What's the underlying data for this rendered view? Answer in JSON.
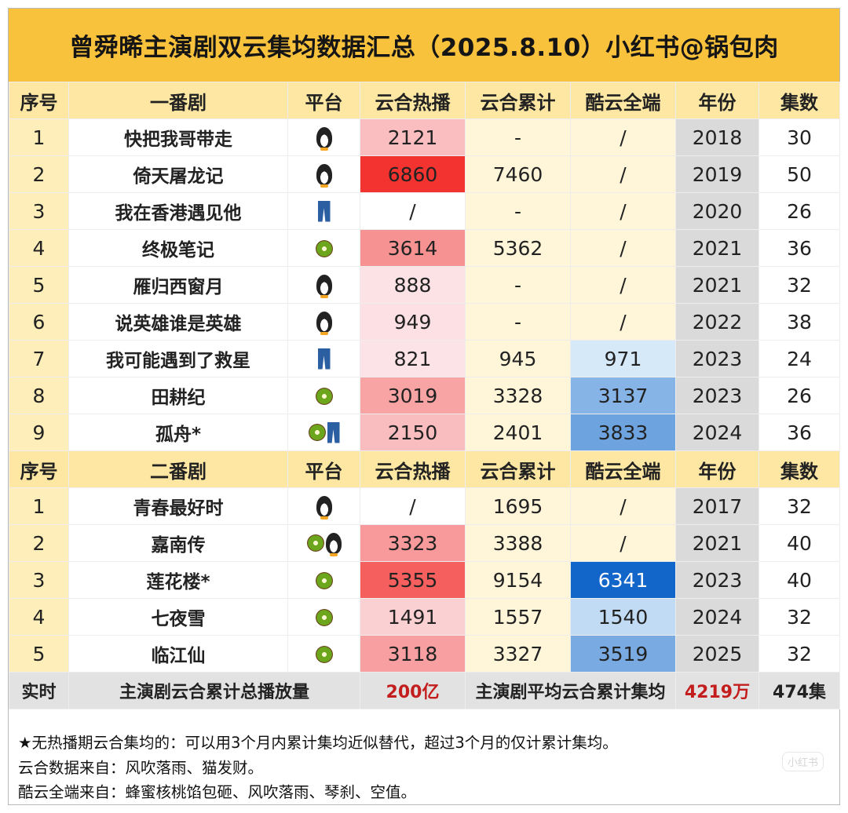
{
  "title": "曾舜晞主演剧双云集均数据汇总（2025.8.10）小红书@锅包肉",
  "headers1": [
    "序号",
    "一番剧",
    "平台",
    "云合热播",
    "云合累计",
    "酷云全端",
    "年份",
    "集数"
  ],
  "headers2": [
    "序号",
    "二番剧",
    "平台",
    "云合热播",
    "云合累计",
    "酷云全端",
    "年份",
    "集数"
  ],
  "rows1": [
    {
      "no": "1",
      "name": "快把我哥带走",
      "platforms": [
        "penguin"
      ],
      "hot": "2121",
      "total": "-",
      "kuyun": "/",
      "year": "2018",
      "eps": "30"
    },
    {
      "no": "2",
      "name": "倚天屠龙记",
      "platforms": [
        "penguin"
      ],
      "hot": "6860",
      "total": "7460",
      "kuyun": "/",
      "year": "2019",
      "eps": "50"
    },
    {
      "no": "3",
      "name": "我在香港遇见他",
      "platforms": [
        "jeans"
      ],
      "hot": "/",
      "total": "-",
      "kuyun": "/",
      "year": "2020",
      "eps": "26"
    },
    {
      "no": "4",
      "name": "终极笔记",
      "platforms": [
        "kiwi"
      ],
      "hot": "3614",
      "total": "5362",
      "kuyun": "/",
      "year": "2021",
      "eps": "36"
    },
    {
      "no": "5",
      "name": "雁归西窗月",
      "platforms": [
        "penguin"
      ],
      "hot": "888",
      "total": "-",
      "kuyun": "/",
      "year": "2021",
      "eps": "32"
    },
    {
      "no": "6",
      "name": "说英雄谁是英雄",
      "platforms": [
        "penguin"
      ],
      "hot": "949",
      "total": "-",
      "kuyun": "/",
      "year": "2022",
      "eps": "38"
    },
    {
      "no": "7",
      "name": "我可能遇到了救星",
      "platforms": [
        "jeans"
      ],
      "hot": "821",
      "total": "945",
      "kuyun": "971",
      "year": "2023",
      "eps": "24"
    },
    {
      "no": "8",
      "name": "田耕纪",
      "platforms": [
        "kiwi"
      ],
      "hot": "3019",
      "total": "3328",
      "kuyun": "3137",
      "year": "2023",
      "eps": "26"
    },
    {
      "no": "9",
      "name": "孤舟*",
      "platforms": [
        "kiwi",
        "jeans"
      ],
      "hot": "2150",
      "total": "2401",
      "kuyun": "3833",
      "year": "2024",
      "eps": "36"
    }
  ],
  "rows2": [
    {
      "no": "1",
      "name": "青春最好时",
      "platforms": [
        "penguin"
      ],
      "hot": "/",
      "total": "1695",
      "kuyun": "/",
      "year": "2017",
      "eps": "32"
    },
    {
      "no": "2",
      "name": "嘉南传",
      "platforms": [
        "kiwi",
        "penguin"
      ],
      "hot": "3323",
      "total": "3388",
      "kuyun": "/",
      "year": "2021",
      "eps": "40"
    },
    {
      "no": "3",
      "name": "莲花楼*",
      "platforms": [
        "kiwi"
      ],
      "hot": "5355",
      "total": "9154",
      "kuyun": "6341",
      "year": "2023",
      "eps": "40"
    },
    {
      "no": "4",
      "name": "七夜雪",
      "platforms": [
        "kiwi"
      ],
      "hot": "1491",
      "total": "1557",
      "kuyun": "1540",
      "year": "2024",
      "eps": "32"
    },
    {
      "no": "5",
      "name": "临江仙",
      "platforms": [
        "kiwi"
      ],
      "hot": "3118",
      "total": "3327",
      "kuyun": "3519",
      "year": "2025",
      "eps": "32"
    }
  ],
  "summary": {
    "label": "实时",
    "total_label": "主演剧云合累计总播放量",
    "total_value": "200亿",
    "avg_label": "主演剧平均云合累计集均",
    "avg_value": "4219万",
    "eps_total": "474集"
  },
  "notes": [
    "★无热播期云合集均的：可以用3个月内累计集均近似替代，超过3个月的仅计累计集均。",
    "云合数据来自：风吹落雨、猫发财。",
    "酷云全端来自：蜂蜜核桃馅包砸、风吹落雨、琴刹、空值。"
  ],
  "watermark": "小红书",
  "colors": {
    "title_bg": "#f9c23c",
    "header_bg": "#fde7a3",
    "highlight_red": "#c31d1d"
  }
}
